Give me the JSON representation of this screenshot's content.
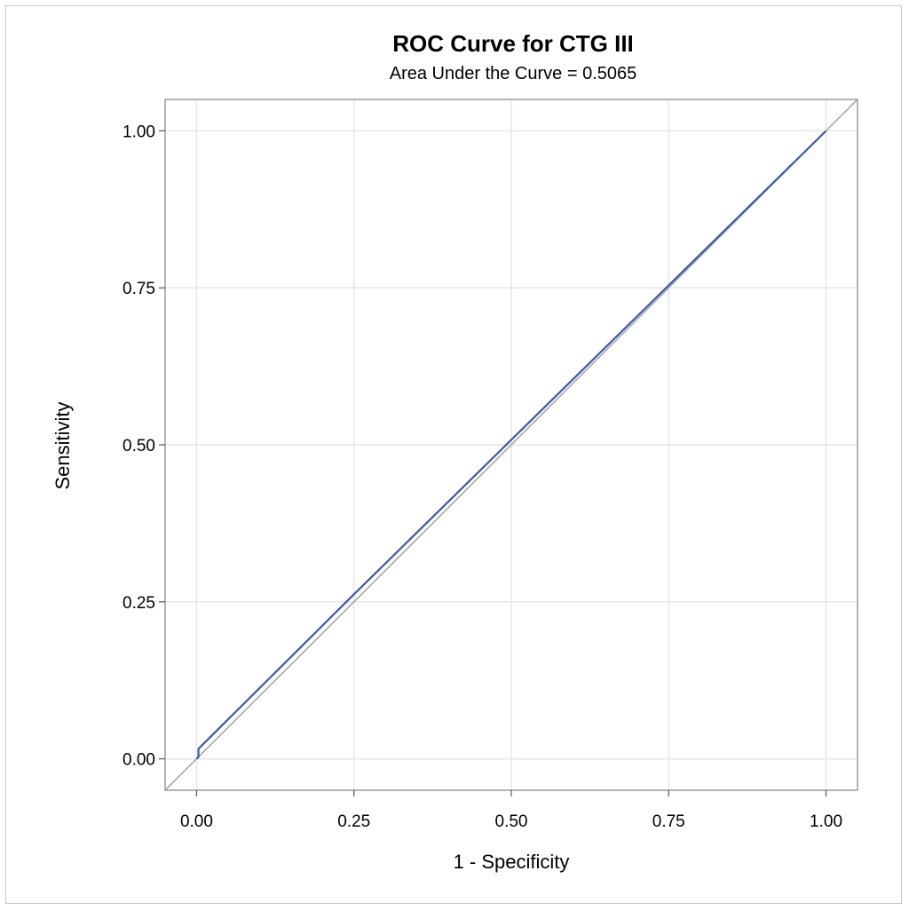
{
  "chart_data": {
    "type": "line",
    "title": "ROC Curve for CTG III",
    "subtitle": "Area Under the Curve = 0.5065",
    "xlabel": "1 - Specificity",
    "ylabel": "Sensitivity",
    "xlim": [
      -0.05,
      1.05
    ],
    "ylim": [
      -0.05,
      1.05
    ],
    "x_ticks": [
      0,
      0.25,
      0.5,
      0.75,
      1
    ],
    "y_ticks": [
      0,
      0.25,
      0.5,
      0.75,
      1
    ],
    "x_tick_labels": [
      "0.00",
      "0.25",
      "0.50",
      "0.75",
      "1.00"
    ],
    "y_tick_labels": [
      "0.00",
      "0.25",
      "0.50",
      "0.75",
      "1.00"
    ],
    "grid": true,
    "series": [
      {
        "color": "#3b5aa8",
        "x": [
          0,
          0.003,
          0.003,
          0.25,
          0.5,
          0.75,
          1.0
        ],
        "y": [
          0,
          0.003,
          0.016,
          0.262,
          0.508,
          0.754,
          1.0
        ]
      }
    ],
    "reference_line": {
      "color": "#a8a8a8",
      "from": [
        -0.05,
        -0.05
      ],
      "to": [
        1.05,
        1.05
      ]
    }
  }
}
